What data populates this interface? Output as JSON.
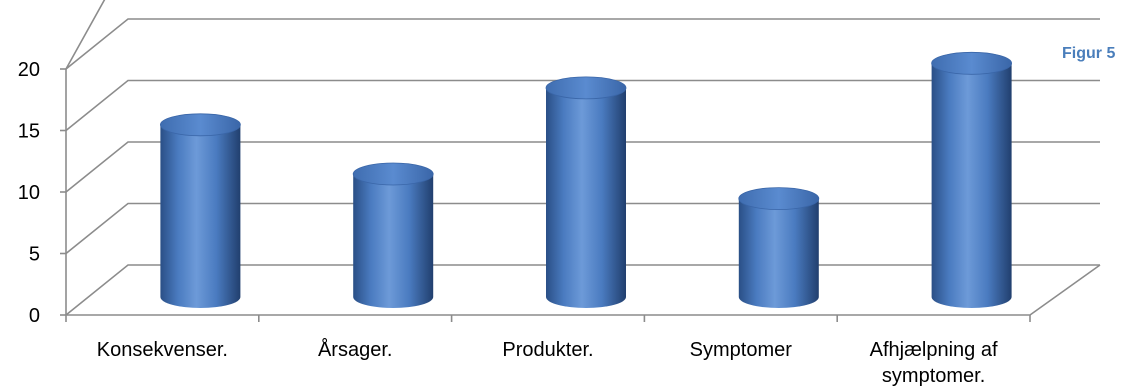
{
  "figure_label": "Figur 5",
  "chart_data": {
    "type": "bar",
    "style": "3d-cylinder",
    "categories": [
      [
        "Konsekvenser."
      ],
      [
        "Årsager."
      ],
      [
        "Produkter."
      ],
      [
        "Symptomer"
      ],
      [
        "Afhjælpning af",
        "symptomer."
      ]
    ],
    "values": [
      14,
      10,
      17,
      8,
      19
    ],
    "ylim": [
      0,
      20
    ],
    "yticks": [
      "0",
      "5",
      "10",
      "15",
      "20"
    ],
    "ytick_values": [
      0,
      5,
      10,
      15,
      20
    ],
    "grid": true,
    "legend": "none",
    "bar_color": "#4f81bd"
  }
}
